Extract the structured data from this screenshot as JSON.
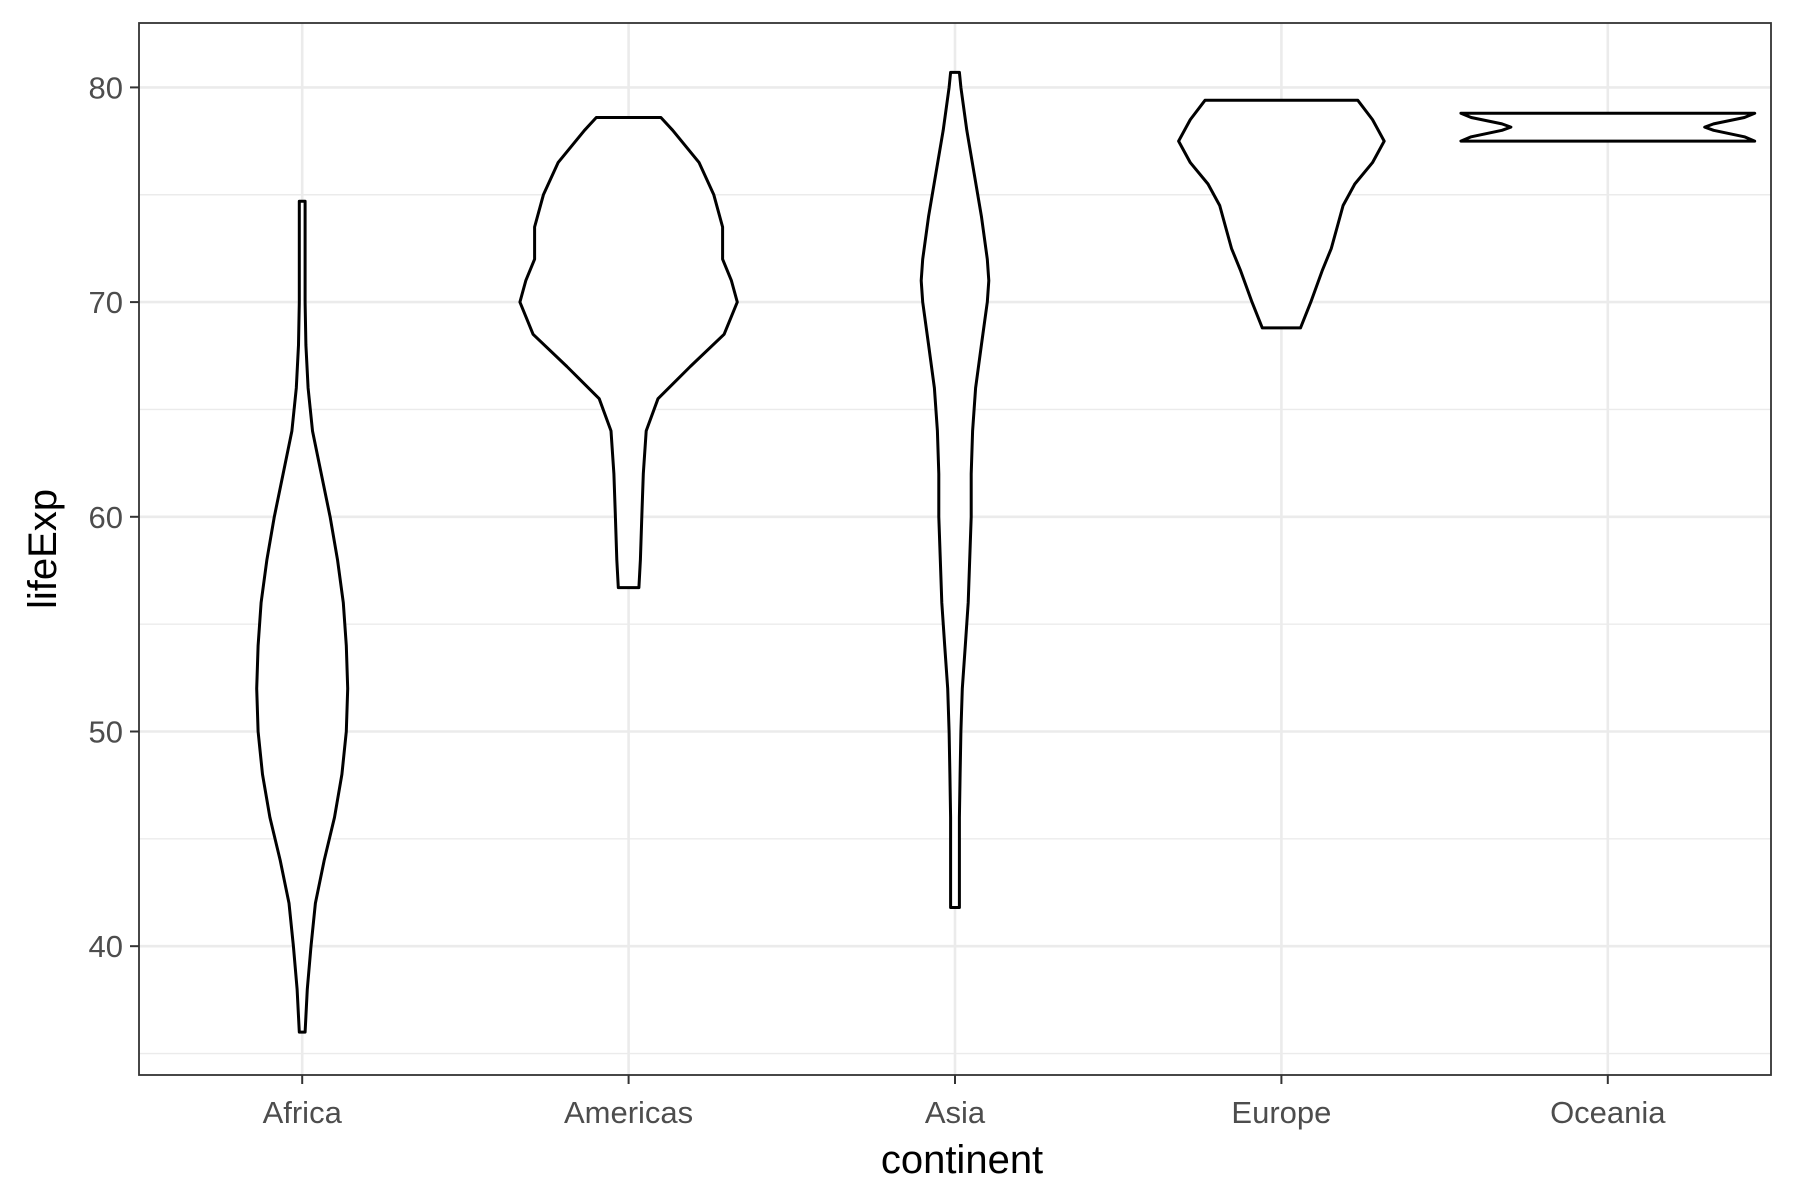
{
  "chart_data": {
    "type": "violin",
    "title": "",
    "xlabel": "continent",
    "ylabel": "lifeExp",
    "categories": [
      "Africa",
      "Americas",
      "Asia",
      "Europe",
      "Oceania"
    ],
    "ylim": [
      34,
      83
    ],
    "y_ticks": [
      40,
      50,
      60,
      70,
      80
    ],
    "y_tick_labels": [
      "40",
      "50",
      "60",
      "70",
      "80"
    ],
    "grid": true,
    "legend": "none",
    "series": [
      {
        "category": "Africa",
        "min": 36.0,
        "max": 74.7,
        "density": [
          [
            36.0,
            0.02
          ],
          [
            38.0,
            0.035
          ],
          [
            40.0,
            0.06
          ],
          [
            42.0,
            0.09
          ],
          [
            44.0,
            0.15
          ],
          [
            46.0,
            0.22
          ],
          [
            48.0,
            0.27
          ],
          [
            50.0,
            0.3
          ],
          [
            52.0,
            0.31
          ],
          [
            54.0,
            0.3
          ],
          [
            56.0,
            0.28
          ],
          [
            58.0,
            0.24
          ],
          [
            60.0,
            0.19
          ],
          [
            62.0,
            0.13
          ],
          [
            64.0,
            0.07
          ],
          [
            66.0,
            0.04
          ],
          [
            68.0,
            0.025
          ],
          [
            70.0,
            0.02
          ],
          [
            72.0,
            0.02
          ],
          [
            74.7,
            0.02
          ]
        ]
      },
      {
        "category": "Americas",
        "min": 56.7,
        "max": 78.6,
        "density": [
          [
            56.7,
            0.07
          ],
          [
            58.0,
            0.08
          ],
          [
            60.0,
            0.09
          ],
          [
            62.0,
            0.1
          ],
          [
            64.0,
            0.12
          ],
          [
            65.5,
            0.2
          ],
          [
            67.0,
            0.42
          ],
          [
            68.5,
            0.65
          ],
          [
            70.0,
            0.74
          ],
          [
            71.0,
            0.7
          ],
          [
            72.0,
            0.64
          ],
          [
            73.5,
            0.64
          ],
          [
            75.0,
            0.58
          ],
          [
            76.5,
            0.48
          ],
          [
            78.0,
            0.3
          ],
          [
            78.6,
            0.22
          ]
        ]
      },
      {
        "category": "Asia",
        "min": 41.8,
        "max": 80.7,
        "density": [
          [
            41.8,
            0.03
          ],
          [
            44.0,
            0.03
          ],
          [
            46.0,
            0.03
          ],
          [
            48.0,
            0.035
          ],
          [
            50.0,
            0.04
          ],
          [
            52.0,
            0.05
          ],
          [
            54.0,
            0.07
          ],
          [
            56.0,
            0.09
          ],
          [
            58.0,
            0.1
          ],
          [
            60.0,
            0.11
          ],
          [
            62.0,
            0.11
          ],
          [
            64.0,
            0.12
          ],
          [
            66.0,
            0.14
          ],
          [
            68.0,
            0.18
          ],
          [
            70.0,
            0.22
          ],
          [
            71.0,
            0.23
          ],
          [
            72.0,
            0.22
          ],
          [
            74.0,
            0.18
          ],
          [
            76.0,
            0.13
          ],
          [
            78.0,
            0.08
          ],
          [
            80.0,
            0.04
          ],
          [
            80.7,
            0.03
          ]
        ]
      },
      {
        "category": "Europe",
        "min": 68.8,
        "max": 79.4,
        "density": [
          [
            68.8,
            0.13
          ],
          [
            70.0,
            0.2
          ],
          [
            71.5,
            0.28
          ],
          [
            72.5,
            0.34
          ],
          [
            73.5,
            0.38
          ],
          [
            74.5,
            0.42
          ],
          [
            75.5,
            0.5
          ],
          [
            76.5,
            0.62
          ],
          [
            77.5,
            0.7
          ],
          [
            78.5,
            0.62
          ],
          [
            79.4,
            0.52
          ]
        ]
      },
      {
        "category": "Oceania",
        "min": 77.5,
        "max": 78.8,
        "density": [
          [
            77.5,
            1.0
          ],
          [
            77.7,
            0.93
          ],
          [
            78.0,
            0.72
          ],
          [
            78.15,
            0.66
          ],
          [
            78.3,
            0.72
          ],
          [
            78.6,
            0.93
          ],
          [
            78.8,
            1.0
          ]
        ]
      }
    ]
  }
}
